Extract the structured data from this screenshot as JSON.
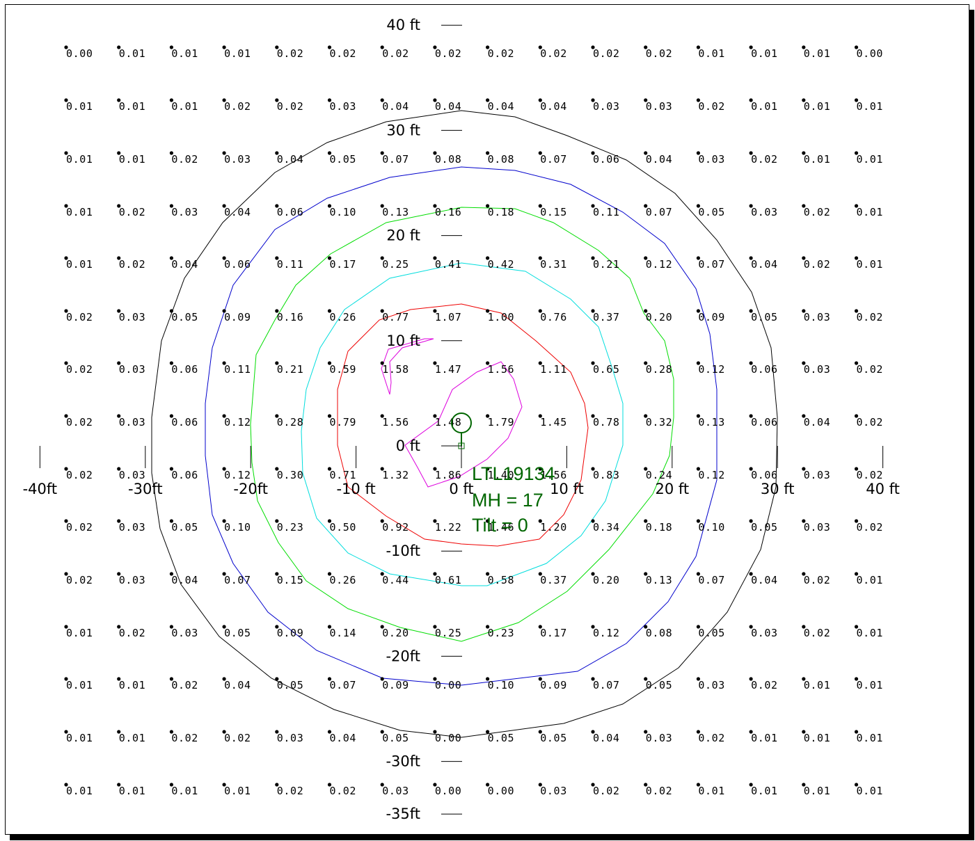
{
  "colors": {
    "contour_black": "#000000",
    "contour_blue": "#0000cc",
    "contour_green": "#00dd00",
    "contour_cyan": "#00dddd",
    "contour_red": "#ee0000",
    "contour_magenta": "#dd00dd",
    "luminaire": "#006600"
  },
  "x_axis_labels": [
    {
      "ft": -40,
      "text": "-40ft"
    },
    {
      "ft": -30,
      "text": "-30ft"
    },
    {
      "ft": -20,
      "text": "-20ft"
    },
    {
      "ft": -10,
      "text": "-10 ft"
    },
    {
      "ft": 0,
      "text": "0 ft"
    },
    {
      "ft": 10,
      "text": "10 ft"
    },
    {
      "ft": 20,
      "text": "20 ft"
    },
    {
      "ft": 30,
      "text": "30 ft"
    },
    {
      "ft": 40,
      "text": "40 ft"
    }
  ],
  "y_axis_labels": [
    {
      "ft": 40,
      "text": "40 ft"
    },
    {
      "ft": 30,
      "text": "30 ft"
    },
    {
      "ft": 20,
      "text": "20 ft"
    },
    {
      "ft": 10,
      "text": "10 ft"
    },
    {
      "ft": 0,
      "text": "0 ft"
    },
    {
      "ft": -10,
      "text": "-10ft"
    },
    {
      "ft": -20,
      "text": "-20ft"
    },
    {
      "ft": -30,
      "text": "-30ft"
    },
    {
      "ft": -35,
      "text": "-35ft"
    }
  ],
  "luminaire": {
    "id": "LTL19134",
    "mounting_height": "MH = 17",
    "tilt": "Tilt = 0"
  },
  "grid_values": [
    [
      "0.00",
      "0.01",
      "0.01",
      "0.01",
      "0.02",
      "0.02",
      "0.02",
      "0.02",
      "0.02",
      "0.02",
      "0.02",
      "0.02",
      "0.01",
      "0.01",
      "0.01",
      "0.00"
    ],
    [
      "0.01",
      "0.01",
      "0.01",
      "0.02",
      "0.02",
      "0.03",
      "0.04",
      "0.04",
      "0.04",
      "0.04",
      "0.03",
      "0.03",
      "0.02",
      "0.01",
      "0.01",
      "0.01"
    ],
    [
      "0.01",
      "0.01",
      "0.02",
      "0.03",
      "0.04",
      "0.05",
      "0.07",
      "0.08",
      "0.08",
      "0.07",
      "0.06",
      "0.04",
      "0.03",
      "0.02",
      "0.01",
      "0.01"
    ],
    [
      "0.01",
      "0.02",
      "0.03",
      "0.04",
      "0.06",
      "0.10",
      "0.13",
      "0.16",
      "0.18",
      "0.15",
      "0.11",
      "0.07",
      "0.05",
      "0.03",
      "0.02",
      "0.01"
    ],
    [
      "0.01",
      "0.02",
      "0.04",
      "0.06",
      "0.11",
      "0.17",
      "0.25",
      "0.41",
      "0.42",
      "0.31",
      "0.21",
      "0.12",
      "0.07",
      "0.04",
      "0.02",
      "0.01"
    ],
    [
      "0.02",
      "0.03",
      "0.05",
      "0.09",
      "0.16",
      "0.26",
      "0.77",
      "1.07",
      "1.00",
      "0.76",
      "0.37",
      "0.20",
      "0.09",
      "0.05",
      "0.03",
      "0.02"
    ],
    [
      "0.02",
      "0.03",
      "0.06",
      "0.11",
      "0.21",
      "0.59",
      "1.58",
      "1.47",
      "1.56",
      "1.11",
      "0.65",
      "0.28",
      "0.12",
      "0.06",
      "0.03",
      "0.02"
    ],
    [
      "0.02",
      "0.03",
      "0.06",
      "0.12",
      "0.28",
      "0.79",
      "1.56",
      "1.48",
      "1.79",
      "1.45",
      "0.78",
      "0.32",
      "0.13",
      "0.06",
      "0.04",
      "0.02"
    ],
    [
      "0.02",
      "0.03",
      "0.06",
      "0.12",
      "0.30",
      "0.71",
      "1.32",
      "1.86",
      "1.40",
      "1.56",
      "0.83",
      "0.24",
      "0.12",
      "0.06",
      "0.03",
      "0.02"
    ],
    [
      "0.02",
      "0.03",
      "0.05",
      "0.10",
      "0.23",
      "0.50",
      "0.92",
      "1.22",
      "1.46",
      "1.20",
      "0.34",
      "0.18",
      "0.10",
      "0.05",
      "0.03",
      "0.02"
    ],
    [
      "0.02",
      "0.03",
      "0.04",
      "0.07",
      "0.15",
      "0.26",
      "0.44",
      "0.61",
      "0.58",
      "0.37",
      "0.20",
      "0.13",
      "0.07",
      "0.04",
      "0.02",
      "0.01"
    ],
    [
      "0.01",
      "0.02",
      "0.03",
      "0.05",
      "0.09",
      "0.14",
      "0.20",
      "0.25",
      "0.23",
      "0.17",
      "0.12",
      "0.08",
      "0.05",
      "0.03",
      "0.02",
      "0.01"
    ],
    [
      "0.01",
      "0.01",
      "0.02",
      "0.04",
      "0.05",
      "0.07",
      "0.09",
      "0.00",
      "0.10",
      "0.09",
      "0.07",
      "0.05",
      "0.03",
      "0.02",
      "0.01",
      "0.01"
    ],
    [
      "0.01",
      "0.01",
      "0.02",
      "0.02",
      "0.03",
      "0.04",
      "0.05",
      "0.00",
      "0.05",
      "0.05",
      "0.04",
      "0.03",
      "0.02",
      "0.01",
      "0.01",
      "0.01"
    ],
    [
      "0.01",
      "0.01",
      "0.01",
      "0.01",
      "0.02",
      "0.02",
      "0.03",
      "0.00",
      "0.00",
      "0.03",
      "0.02",
      "0.02",
      "0.01",
      "0.01",
      "0.01",
      "0.01"
    ]
  ]
}
